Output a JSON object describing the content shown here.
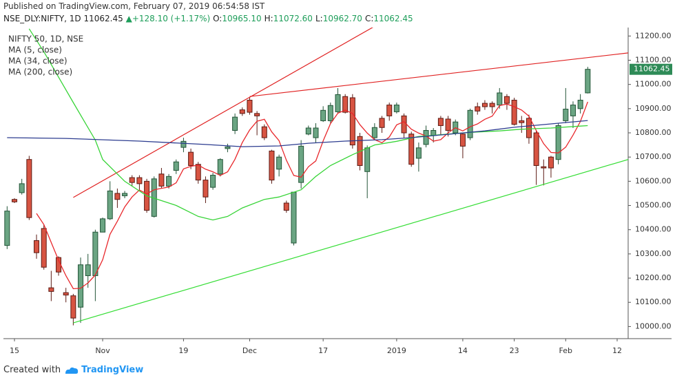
{
  "header": {
    "published": "Published on TradingView.com, February 07, 2019 06:54:58 IST",
    "symbol": "NSE_DLY:NIFTY, 1D",
    "last": "11062.45",
    "arrow": "▲",
    "change": "+128.10 (+1.17%)",
    "ohlc": [
      {
        "label": "O:",
        "value": "10965.10"
      },
      {
        "label": "H:",
        "value": "11072.60"
      },
      {
        "label": "L:",
        "value": "10962.70"
      },
      {
        "label": "C:",
        "value": "11062.45"
      }
    ]
  },
  "chart_data": {
    "type": "candlestick",
    "title": "NIFTY 50, 1D, NSE",
    "up_color": "#6ba583",
    "down_color": "#d75442",
    "open": [
      10335,
      10525,
      10553,
      10690,
      10355,
      10405,
      10160,
      10285,
      10140,
      10127,
      10080,
      10210,
      10210,
      10390,
      10445,
      10550,
      10540,
      10615,
      10615,
      10600,
      10455,
      10630,
      10580,
      10645,
      10740,
      10720,
      10670,
      10605,
      10575,
      10630,
      10735,
      10810,
      10895,
      10935,
      10880,
      10825,
      10725,
      10650,
      10510,
      10345,
      10595,
      10795,
      10780,
      10850,
      10850,
      10887,
      10950,
      10945,
      10785,
      10640,
      10780,
      10860,
      10915,
      10887,
      10870,
      10795,
      10695,
      10752,
      10790,
      10860,
      10857,
      10800,
      10795,
      10780,
      10908,
      10922,
      10922,
      10915,
      10950,
      10935,
      10850,
      10860,
      10800,
      10660,
      10700,
      10690,
      10850,
      10870,
      10900,
      10965.1
    ],
    "high": [
      10497,
      10530,
      10610,
      10705,
      10380,
      10420,
      10230,
      10290,
      10160,
      10135,
      10285,
      10300,
      10400,
      10450,
      10600,
      10570,
      10560,
      10625,
      10625,
      10610,
      10620,
      10655,
      10630,
      10690,
      10780,
      10735,
      10680,
      10620,
      10635,
      10695,
      10755,
      10880,
      10905,
      10945,
      10890,
      10835,
      10730,
      10710,
      10520,
      10555,
      10770,
      10830,
      10840,
      10910,
      10925,
      10985,
      10960,
      10960,
      10800,
      10748,
      10840,
      10870,
      10925,
      10925,
      10880,
      10805,
      10760,
      10830,
      10820,
      10870,
      10870,
      10855,
      10800,
      10900,
      10925,
      10935,
      10930,
      10985,
      10960,
      10945,
      10870,
      10875,
      10810,
      10690,
      10705,
      10840,
      10985,
      10930,
      10960,
      11072.6
    ],
    "low": [
      10320,
      10510,
      10545,
      10440,
      10280,
      10235,
      10105,
      10210,
      10100,
      10005,
      10015,
      10160,
      10105,
      10390,
      10440,
      10490,
      10530,
      10580,
      10560,
      10470,
      10450,
      10570,
      10570,
      10630,
      10720,
      10650,
      10590,
      10510,
      10565,
      10620,
      10720,
      10795,
      10870,
      10875,
      10790,
      10770,
      10590,
      10620,
      10470,
      10335,
      10570,
      10790,
      10760,
      10845,
      10840,
      10880,
      10880,
      10735,
      10645,
      10530,
      10770,
      10800,
      10850,
      10880,
      10780,
      10660,
      10640,
      10740,
      10760,
      10790,
      10785,
      10790,
      10695,
      10770,
      10875,
      10895,
      10880,
      10900,
      10895,
      10830,
      10800,
      10755,
      10585,
      10583,
      10615,
      10670,
      10840,
      10820,
      10880,
      10962.7
    ],
    "close": [
      10477,
      10515,
      10590,
      10450,
      10305,
      10245,
      10145,
      10225,
      10130,
      10035,
      10255,
      10255,
      10390,
      10445,
      10560,
      10525,
      10550,
      10595,
      10590,
      10480,
      10610,
      10580,
      10620,
      10680,
      10765,
      10665,
      10605,
      10535,
      10625,
      10690,
      10742,
      10865,
      10880,
      10885,
      10870,
      10780,
      10605,
      10700,
      10480,
      10555,
      10745,
      10820,
      10820,
      10893,
      10913,
      10958,
      10885,
      10750,
      10665,
      10738,
      10822,
      10822,
      10870,
      10915,
      10800,
      10670,
      10738,
      10810,
      10810,
      10830,
      10810,
      10845,
      10745,
      10893,
      10890,
      10908,
      10908,
      10965,
      10922,
      10835,
      10842,
      10780,
      10665,
      10655,
      10655,
      10830,
      10898,
      10915,
      10935,
      11062.45
    ],
    "series": [
      {
        "name": "MA (5, close)",
        "color": "#e8272b",
        "values": [
          null,
          null,
          null,
          null,
          10467,
          10421,
          10347,
          10274,
          10210,
          10156,
          10158,
          10180,
          10213,
          10276,
          10381,
          10435,
          10494,
          10535,
          10564,
          10548,
          10565,
          10571,
          10576,
          10594,
          10651,
          10662,
          10667,
          10650,
          10639,
          10624,
          10639,
          10691,
          10760,
          10812,
          10848,
          10856,
          10804,
          10768,
          10687,
          10624,
          10617,
          10660,
          10684,
          10767,
          10838,
          10881,
          10894,
          10880,
          10834,
          10799,
          10772,
          10759,
          10783,
          10833,
          10846,
          10815,
          10799,
          10787,
          10766,
          10772,
          10800,
          10821,
          10808,
          10825,
          10837,
          10856,
          10869,
          10913,
          10919,
          10908,
          10894,
          10869,
          10809,
          10755,
          10719,
          10717,
          10741,
          10791,
          10847,
          10928
        ]
      },
      {
        "name": "MA (34, close)",
        "color": "#37d437",
        "x": [
          3,
          5,
          9,
          12,
          13,
          16,
          19,
          23,
          26,
          28,
          30,
          32,
          35,
          37,
          40,
          42,
          44,
          47,
          50,
          53,
          56,
          60,
          63,
          67,
          70,
          74,
          78,
          79
        ],
        "values": [
          11230,
          11135,
          10925,
          10770,
          10690,
          10600,
          10540,
          10500,
          10455,
          10440,
          10455,
          10490,
          10525,
          10535,
          10565,
          10620,
          10665,
          10710,
          10750,
          10765,
          10785,
          10795,
          10802,
          10808,
          10815,
          10820,
          10828,
          10830
        ]
      },
      {
        "name": "MA (200, close)",
        "color": "#2b3b8f",
        "x": [
          0,
          8,
          18,
          27,
          32,
          37,
          41,
          46,
          51,
          55,
          60,
          65,
          69,
          74,
          79
        ],
        "values": [
          10780,
          10777,
          10766,
          10752,
          10743,
          10746,
          10757,
          10766,
          10772,
          10780,
          10794,
          10808,
          10823,
          10837,
          10851
        ]
      }
    ],
    "trendlines": [
      {
        "color": "#e02020",
        "x": [
          9,
          50
        ],
        "values": [
          10533,
          11240
        ]
      },
      {
        "color": "#e02020",
        "x": [
          33,
          84.5
        ],
        "values": [
          10950,
          11130
        ]
      },
      {
        "color": "#33dd33",
        "x": [
          9,
          84.5
        ],
        "values": [
          10015,
          10690
        ]
      }
    ],
    "xlim": [
      -0.5,
      84.5
    ],
    "xticks": [
      {
        "value": 1,
        "label": "15"
      },
      {
        "value": 13,
        "label": "Nov"
      },
      {
        "value": 24,
        "label": "19"
      },
      {
        "value": 33,
        "label": "Dec"
      },
      {
        "value": 43,
        "label": "17"
      },
      {
        "value": 53,
        "label": "2019"
      },
      {
        "value": 62,
        "label": "14"
      },
      {
        "value": 69,
        "label": "23"
      },
      {
        "value": 76,
        "label": "Feb"
      },
      {
        "value": 83,
        "label": "12"
      }
    ],
    "ylim": [
      9950,
      11235
    ],
    "yticks": [
      {
        "value": 11200,
        "label": "11200.00"
      },
      {
        "value": 11100,
        "label": "11100.00"
      },
      {
        "value": 11000,
        "label": "11000.00"
      },
      {
        "value": 10900,
        "label": "10900.00"
      },
      {
        "value": 10800,
        "label": "10800.00"
      },
      {
        "value": 10700,
        "label": "10700.00"
      },
      {
        "value": 10600,
        "label": "10600.00"
      },
      {
        "value": 10500,
        "label": "10500.00"
      },
      {
        "value": 10400,
        "label": "10400.00"
      },
      {
        "value": 10300,
        "label": "10300.00"
      },
      {
        "value": 10200,
        "label": "10200.00"
      },
      {
        "value": 10100,
        "label": "10100.00"
      },
      {
        "value": 10000,
        "label": "10000.00"
      }
    ],
    "grid": false
  },
  "footer": {
    "created": "Created with",
    "brand": "TradingView"
  }
}
